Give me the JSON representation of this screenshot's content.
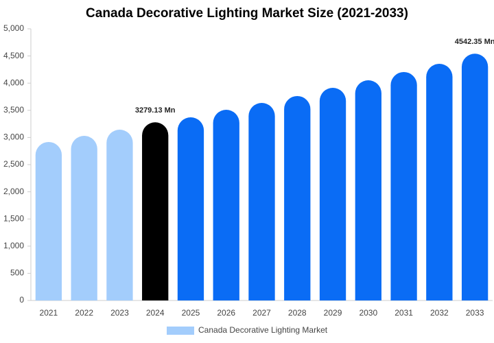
{
  "chart_data": {
    "type": "bar",
    "title": "Canada Decorative Lighting Market Size (2021-2033)",
    "categories": [
      "2021",
      "2022",
      "2023",
      "2024",
      "2025",
      "2026",
      "2027",
      "2028",
      "2029",
      "2030",
      "2031",
      "2032",
      "2033"
    ],
    "series": [
      {
        "name": "Canada Decorative Lighting Market",
        "color": "#a3cdfc",
        "values": [
          2917,
          3030,
          3144,
          3279.13,
          3371,
          3510,
          3636,
          3763,
          3914,
          4053,
          4205,
          4356,
          4542.35
        ],
        "value_labels": [
          null,
          null,
          null,
          "3279.13 Mn",
          null,
          null,
          null,
          null,
          null,
          null,
          null,
          null,
          "4542.35 Mn"
        ],
        "bar_colors": [
          "#a3cdfc",
          "#a3cdfc",
          "#a3cdfc",
          "#000000",
          "#0a6cf5",
          "#0a6cf5",
          "#0a6cf5",
          "#0a6cf5",
          "#0a6cf5",
          "#0a6cf5",
          "#0a6cf5",
          "#0a6cf5",
          "#0a6cf5"
        ]
      }
    ],
    "ylim": [
      0,
      5000
    ],
    "yticks": [
      0,
      500,
      {
        "value": 1000,
        "label": "1,000"
      },
      {
        "value": 1500,
        "label": "1,500"
      },
      {
        "value": 2000,
        "label": "2,000"
      },
      {
        "value": 2500,
        "label": "2,500"
      },
      {
        "value": 3000,
        "label": "3,000"
      },
      {
        "value": 3500,
        "label": "3,500"
      },
      {
        "value": 4000,
        "label": "4,000"
      },
      {
        "value": 4500,
        "label": "4,500"
      },
      {
        "value": 5000,
        "label": "5,000"
      }
    ],
    "grid": false,
    "legend": "bottom"
  }
}
